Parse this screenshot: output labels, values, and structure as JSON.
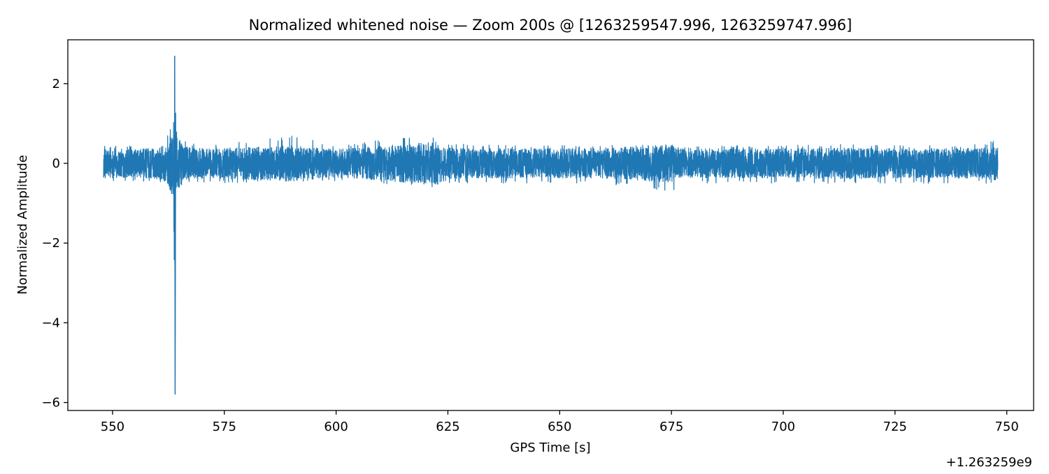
{
  "chart_data": {
    "type": "line",
    "title": "Normalized whitened noise — Zoom 200s @ [1263259547.996, 1263259747.996]",
    "xlabel": "GPS Time [s]",
    "ylabel": "Normalized Amplitude",
    "x_offset_label": "+1.263259e9",
    "xlim": [
      540.0,
      756.0
    ],
    "ylim": [
      -6.2,
      3.1
    ],
    "x_ticks": [
      550,
      575,
      600,
      625,
      650,
      675,
      700,
      725,
      750
    ],
    "x_tick_labels": [
      "550",
      "575",
      "600",
      "625",
      "650",
      "675",
      "700",
      "725",
      "750"
    ],
    "y_ticks": [
      -6,
      -4,
      -2,
      0,
      2
    ],
    "y_tick_labels": [
      "−6",
      "−4",
      "−2",
      "0",
      "2"
    ],
    "grid": false,
    "colors": {
      "line": "#1f77b4"
    },
    "series": [
      {
        "x_range": [
          547.996,
          747.996
        ],
        "envelope_x": [
          548,
          555,
          560,
          562,
          563,
          563.6,
          563.9,
          564.2,
          564.6,
          565.5,
          567,
          572,
          590,
          600,
          622.7,
          623.2,
          640,
          660,
          675.5,
          676,
          690,
          700,
          715,
          725,
          740,
          745,
          748
        ],
        "envelope_upper": [
          0.45,
          0.45,
          0.5,
          0.6,
          0.9,
          1.1,
          2.7,
          1.1,
          0.9,
          0.6,
          0.5,
          0.45,
          0.7,
          0.45,
          0.75,
          0.5,
          0.45,
          0.45,
          0.5,
          0.45,
          0.45,
          0.45,
          0.5,
          0.45,
          0.45,
          0.5,
          0.6
        ],
        "envelope_lower": [
          -0.5,
          -0.45,
          -0.5,
          -0.6,
          -0.9,
          -1.2,
          -5.8,
          -1.2,
          -0.9,
          -0.6,
          -0.5,
          -0.5,
          -0.45,
          -0.45,
          -0.65,
          -0.5,
          -0.5,
          -0.5,
          -0.75,
          -0.5,
          -0.5,
          -0.5,
          -0.5,
          -0.5,
          -0.5,
          -0.5,
          -0.5
        ]
      }
    ]
  }
}
